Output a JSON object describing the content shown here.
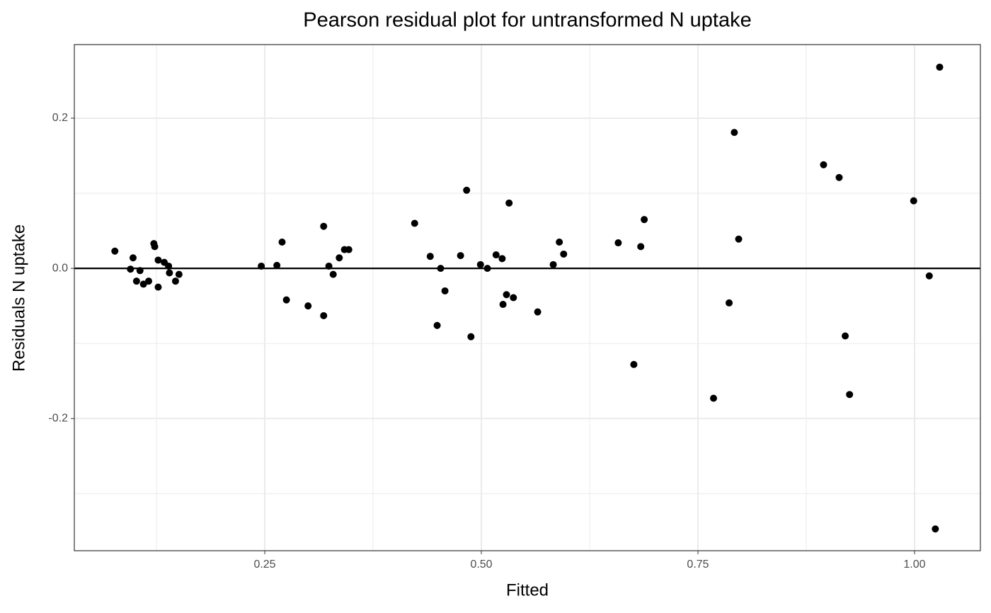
{
  "chart_data": {
    "type": "scatter",
    "title": "Pearson residual plot for untransformed N uptake",
    "x_label": "Fitted",
    "y_label": "Residuals N uptake",
    "x": [
      0.077,
      0.098,
      0.095,
      0.102,
      0.106,
      0.11,
      0.116,
      0.122,
      0.123,
      0.127,
      0.127,
      0.134,
      0.139,
      0.14,
      0.147,
      0.151,
      0.246,
      0.264,
      0.27,
      0.275,
      0.3,
      0.318,
      0.318,
      0.324,
      0.329,
      0.336,
      0.342,
      0.347,
      0.423,
      0.441,
      0.449,
      0.453,
      0.458,
      0.476,
      0.483,
      0.488,
      0.499,
      0.507,
      0.517,
      0.524,
      0.525,
      0.529,
      0.532,
      0.537,
      0.565,
      0.583,
      0.59,
      0.595,
      0.658,
      0.676,
      0.684,
      0.688,
      0.768,
      0.786,
      0.792,
      0.797,
      0.895,
      0.913,
      0.92,
      0.925,
      0.999,
      1.017,
      1.024,
      1.029
    ],
    "y": [
      0.023,
      0.014,
      -0.001,
      -0.017,
      -0.003,
      -0.021,
      -0.017,
      0.033,
      0.029,
      0.011,
      -0.025,
      0.008,
      0.003,
      -0.006,
      -0.017,
      -0.008,
      0.003,
      0.004,
      0.035,
      -0.042,
      -0.05,
      0.056,
      -0.063,
      0.003,
      -0.008,
      0.014,
      0.025,
      0.025,
      0.06,
      0.016,
      -0.076,
      0.0,
      -0.03,
      0.017,
      0.104,
      -0.091,
      0.005,
      0.0,
      0.018,
      0.013,
      -0.048,
      -0.035,
      0.087,
      -0.039,
      -0.058,
      0.005,
      0.035,
      0.019,
      0.034,
      -0.128,
      0.029,
      0.065,
      -0.173,
      -0.046,
      0.181,
      0.039,
      0.138,
      0.121,
      -0.09,
      -0.168,
      0.09,
      -0.01,
      -0.347,
      0.268
    ],
    "color": "#000000",
    "xlim": [
      0.0302,
      1.076
    ],
    "ylim": [
      -0.376,
      0.298
    ],
    "xticks": [
      0.25,
      {
        "value": 0.5,
        "label": "0.50"
      },
      0.75,
      {
        "value": 1,
        "label": "1.00"
      }
    ],
    "yticks": [
      -0.2,
      {
        "value": 0,
        "label": "0.0"
      },
      0.2
    ],
    "x_minor_ticks": [
      0.125,
      0.375,
      0.625,
      0.875
    ],
    "y_minor_ticks": [
      -0.3,
      -0.1,
      0.1
    ],
    "hline": 0,
    "grid": true
  }
}
